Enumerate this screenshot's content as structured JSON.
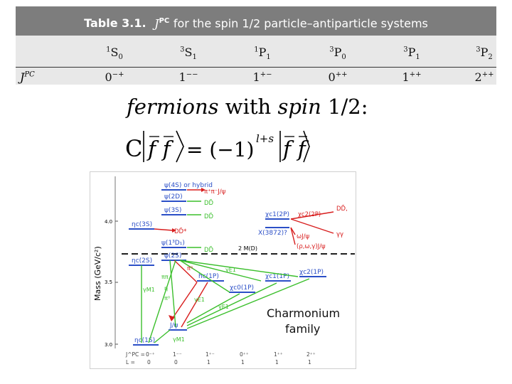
{
  "table": {
    "title_number": "Table 3.1.",
    "title_j": "J",
    "title_pc": "PC",
    "title_text": "for the spin 1/2 particle–antiparticle systems",
    "states": [
      {
        "pre": "1",
        "letter": "S",
        "sub": "0"
      },
      {
        "pre": "3",
        "letter": "S",
        "sub": "1"
      },
      {
        "pre": "1",
        "letter": "P",
        "sub": "1"
      },
      {
        "pre": "3",
        "letter": "P",
        "sub": "0"
      },
      {
        "pre": "3",
        "letter": "P",
        "sub": "1"
      },
      {
        "pre": "3",
        "letter": "P",
        "sub": "2"
      }
    ],
    "row_label_j": "J",
    "row_label_pc": "PC",
    "values": [
      {
        "j": "0",
        "pc": "−+"
      },
      {
        "j": "1",
        "pc": "−−"
      },
      {
        "j": "1",
        "pc": "+−"
      },
      {
        "j": "0",
        "pc": "++"
      },
      {
        "j": "1",
        "pc": "++"
      },
      {
        "j": "2",
        "pc": "++"
      }
    ]
  },
  "heading": {
    "fermions": "fermions",
    "with": " with ",
    "spin": "spin",
    "value": " 1/2:"
  },
  "formula": {
    "c": "C",
    "equals": "= (−1)",
    "exp": "l+s",
    "ff": "f f"
  },
  "figure": {
    "ylabel": "Mass (GeV/c²)",
    "ticks": [
      "4.0",
      "3.5",
      "3.0"
    ],
    "threshold": "2 M(D)",
    "levels": {
      "psi4s": "ψ(4S) or hybrid",
      "pipi_jpsi": "π⁺π⁻J/ψ",
      "psi2d": "ψ(2D)",
      "dd1": "DD̄",
      "psi3s": "ψ(3S)",
      "dd2": "DD̄",
      "etac3s": "ηc(3S)",
      "ddstar": "DD̄*",
      "psi1d": "ψ(1³D₁)",
      "dd3": "DD̄",
      "psi2s": "ψ(2S)",
      "etac2s": "ηc(2S)",
      "chic12p": "χc1(2P)",
      "x3872": "X(3872)?",
      "chic22p": "χc2(2P)",
      "omegajpsi": "ωJ/ψ",
      "rhoomega": "(ρ,ω,γ)J/ψ",
      "dd4": "DD̄,",
      "gg": "γγ",
      "hc1p": "hc(1P)",
      "chic11p": "χc1(1P)",
      "chic21p": "χc2(1P)",
      "chic01p": "χc0(1P)",
      "jpsi": "J/ψ",
      "etac1s": "ηc(1S)"
    },
    "transitions": {
      "pipi": "ππ",
      "eta": "η",
      "pi0": "π⁰",
      "gm1": "γM1",
      "ge1a": "γE1",
      "ge1b": "γE1",
      "ge1c": "γE1",
      "gm1b": "γM1",
      "pi0b": "π⁰"
    },
    "caption_line1": "Charmonium",
    "caption_line2": "family",
    "jpc_label": "J^PC =",
    "l_label": "L =",
    "jpc_values": [
      "0⁻⁺",
      "1⁻⁻",
      "1⁺⁻",
      "0⁺⁺",
      "1⁺⁺",
      "2⁺⁺"
    ],
    "l_values": [
      "0",
      "0",
      "1",
      "1",
      "1",
      "1"
    ],
    "colors": {
      "level": "#2b4fc7",
      "decay": "#d81e1e",
      "transition": "#3bbf2c",
      "threshold": "#000000"
    }
  }
}
